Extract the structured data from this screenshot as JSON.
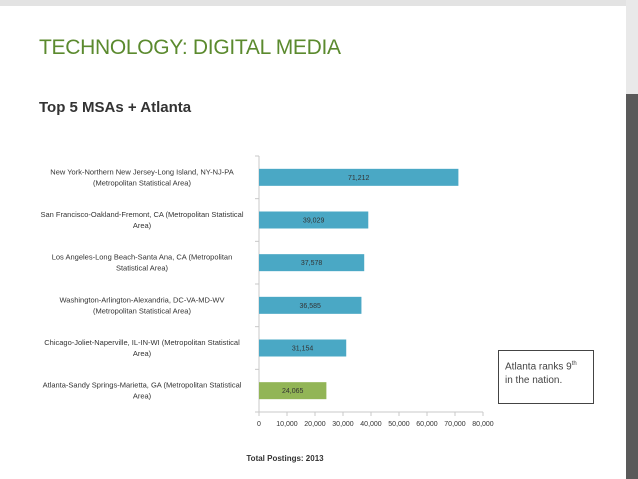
{
  "title": "TECHNOLOGY: DIGITAL MEDIA",
  "subtitle": "Top 5 MSAs + Atlanta",
  "note": {
    "text": "Atlanta ranks 9",
    "superscript": "th",
    "text_after": "in the nation."
  },
  "colors": {
    "title": "#5b8a2e",
    "bar_primary": "#4aa8c5",
    "bar_highlight": "#92b556"
  },
  "chart_data": {
    "type": "bar",
    "orientation": "horizontal",
    "categories": [
      [
        "New York-Northern New Jersey-Long Island, NY-NJ-PA",
        "(Metropolitan Statistical Area)"
      ],
      [
        "San Francisco-Oakland-Fremont, CA (Metropolitan Statistical",
        "Area)"
      ],
      [
        "Los Angeles-Long Beach-Santa Ana, CA (Metropolitan",
        "Statistical Area)"
      ],
      [
        "Washington-Arlington-Alexandria, DC-VA-MD-WV",
        "(Metropolitan Statistical Area)"
      ],
      [
        "Chicago-Joliet-Naperville, IL-IN-WI (Metropolitan Statistical",
        "Area)"
      ],
      [
        "Atlanta-Sandy Springs-Marietta, GA (Metropolitan Statistical",
        "Area)"
      ]
    ],
    "values": [
      71212,
      39029,
      37578,
      36585,
      31154,
      24065
    ],
    "value_labels": [
      "71,212",
      "39,029",
      "37,578",
      "36,585",
      "31,154",
      "24,065"
    ],
    "highlight": [
      false,
      false,
      false,
      false,
      false,
      true
    ],
    "xlabel": "Total Postings: 2013",
    "xlim": [
      0,
      80000
    ],
    "ticks": [
      "0",
      "10,000",
      "20,000",
      "30,000",
      "40,000",
      "50,000",
      "60,000",
      "70,000",
      "80,000"
    ],
    "tick_values": [
      0,
      10000,
      20000,
      30000,
      40000,
      50000,
      60000,
      70000,
      80000
    ],
    "grid": false
  }
}
